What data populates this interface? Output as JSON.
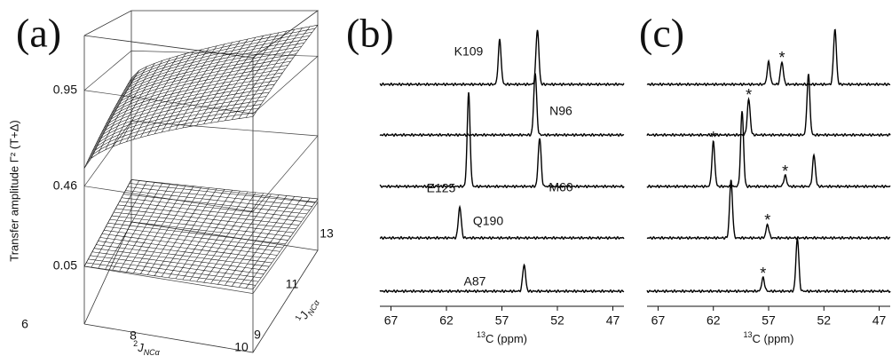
{
  "panel_a": {
    "label": "(a)",
    "y_axis_label": "Transfer amplitude Γ² (T+Δ)",
    "z_ticks": [
      0.95,
      0.46,
      0.05
    ],
    "x_ticks": [
      6,
      8,
      10
    ],
    "x_axis_label": {
      "sup": "2",
      "main": "J",
      "sub": "NCα"
    },
    "depth_ticks": [
      9,
      11,
      13
    ],
    "depth_axis_label": {
      "sup": "1",
      "main": "J",
      "sub": "NCα"
    }
  },
  "panel_b": {
    "label": "(b)",
    "xlim": [
      68,
      46
    ],
    "xticks": [
      67,
      62,
      57,
      52,
      47
    ],
    "x_axis_label": {
      "sup": "13",
      "main": "C (ppm)"
    },
    "rows": [
      {
        "labels": [
          "K109"
        ],
        "peaks": [
          {
            "ppm": 57.2,
            "intensity": 50
          },
          {
            "ppm": 53.8,
            "intensity": 62
          }
        ]
      },
      {
        "labels": [
          "N96"
        ],
        "peaks": [
          {
            "ppm": 54.0,
            "intensity": 70
          }
        ]
      },
      {
        "labels": [
          "E125",
          "M60"
        ],
        "peaks": [
          {
            "ppm": 60.0,
            "intensity": 105
          },
          {
            "ppm": 53.6,
            "intensity": 55
          }
        ]
      },
      {
        "labels": [
          "Q190"
        ],
        "peaks": [
          {
            "ppm": 60.8,
            "intensity": 35
          }
        ]
      },
      {
        "labels": [
          "A87"
        ],
        "peaks": [
          {
            "ppm": 55.0,
            "intensity": 30
          }
        ]
      }
    ]
  },
  "panel_c": {
    "label": "(c)",
    "xlim": [
      68,
      46
    ],
    "xticks": [
      67,
      62,
      57,
      52,
      47
    ],
    "x_axis_label": {
      "sup": "13",
      "main": "C (ppm)"
    },
    "rows": [
      {
        "peaks": [
          {
            "ppm": 57.0,
            "intensity": 25
          },
          {
            "ppm": 55.8,
            "intensity": 25,
            "mark": "*"
          },
          {
            "ppm": 51.0,
            "intensity": 62
          }
        ]
      },
      {
        "peaks": [
          {
            "ppm": 58.8,
            "intensity": 40,
            "mark": "*"
          },
          {
            "ppm": 53.4,
            "intensity": 68
          }
        ]
      },
      {
        "peaks": [
          {
            "ppm": 62.0,
            "intensity": 50,
            "mark": "*"
          },
          {
            "ppm": 59.4,
            "intensity": 85
          },
          {
            "ppm": 55.5,
            "intensity": 12,
            "mark": "*"
          },
          {
            "ppm": 52.9,
            "intensity": 35
          }
        ]
      },
      {
        "peaks": [
          {
            "ppm": 60.4,
            "intensity": 65
          },
          {
            "ppm": 57.1,
            "intensity": 15,
            "mark": "*"
          }
        ]
      },
      {
        "peaks": [
          {
            "ppm": 57.5,
            "intensity": 15,
            "mark": "*"
          },
          {
            "ppm": 54.4,
            "intensity": 60
          }
        ]
      }
    ]
  }
}
